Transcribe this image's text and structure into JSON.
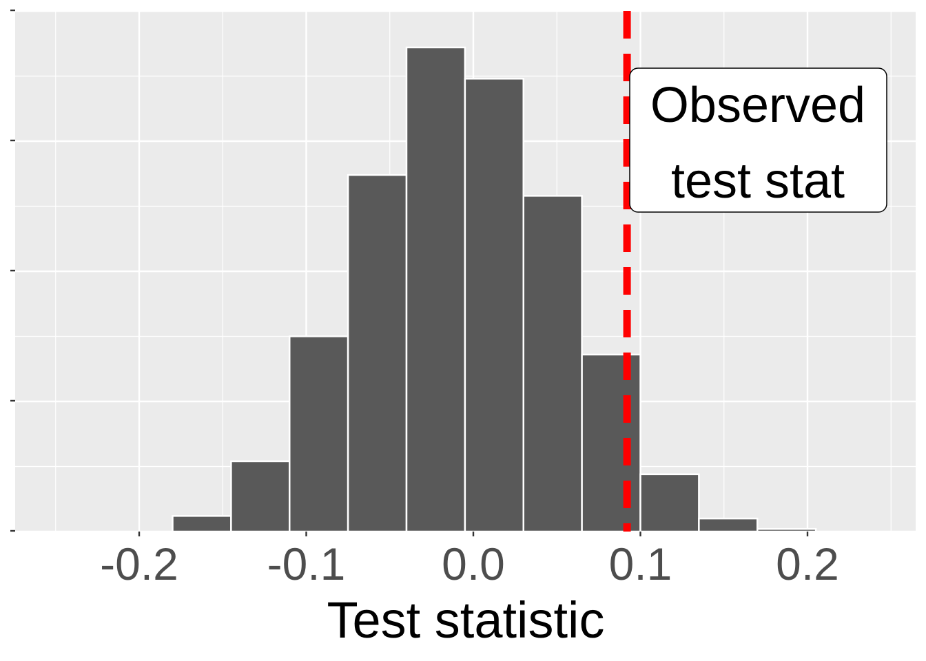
{
  "chart_data": {
    "type": "bar",
    "subtype": "histogram",
    "title": "",
    "xlabel": "Test statistic",
    "ylabel": "",
    "xlim": [
      -0.27,
      0.27
    ],
    "ylim": [
      0,
      200
    ],
    "x_ticks": [
      -0.2,
      -0.1,
      0.0,
      0.1,
      0.2
    ],
    "x_tick_labels": [
      "-0.2",
      "-0.1",
      "0.0",
      "0.1",
      "0.2"
    ],
    "y_ticks": [
      0,
      50,
      100,
      150,
      200
    ],
    "y_tick_labels_shown": false,
    "bin_edges": [
      -0.215,
      -0.18,
      -0.145,
      -0.11,
      -0.075,
      -0.04,
      -0.005,
      0.03,
      0.065,
      0.1,
      0.135,
      0.17,
      0.205
    ],
    "counts": [
      0,
      6,
      27,
      75,
      137,
      186,
      174,
      129,
      68,
      22,
      5,
      1
    ],
    "bar_color": "#595959",
    "bar_outline": "#ffffff",
    "panel_background": "#ebebeb",
    "grid": true,
    "observed_line": {
      "x": 0.092,
      "color": "#ff0000",
      "style": "dashed"
    },
    "annotation": {
      "lines": [
        "Observed",
        "test stat"
      ]
    }
  }
}
